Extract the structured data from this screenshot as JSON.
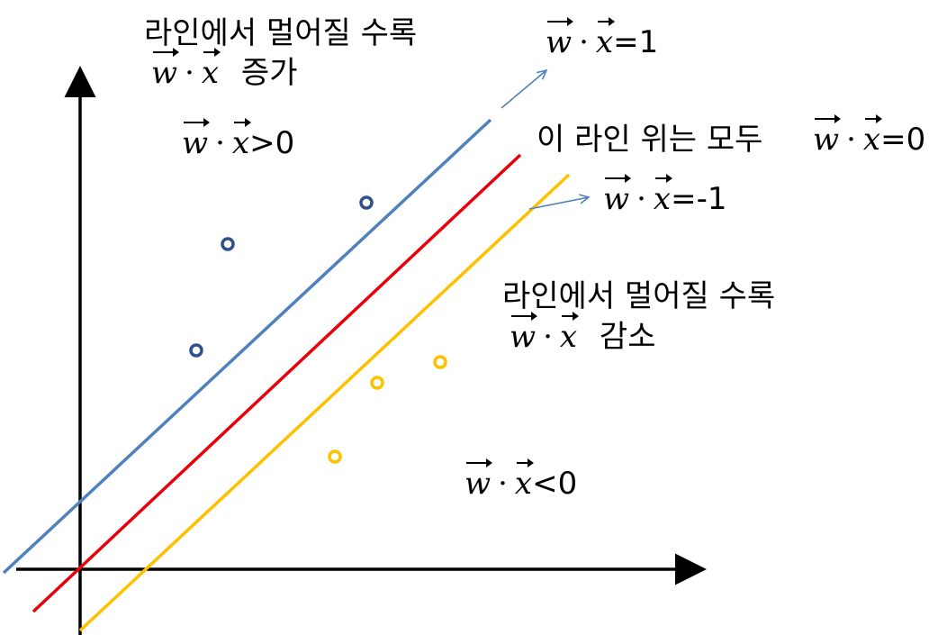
{
  "colors": {
    "axis": "#000000",
    "line_plus": "#4F81BD",
    "line_zero": "#E8000B",
    "line_minus": "#FFC000",
    "point_positive": "#2F4F8F",
    "point_negative": "#FFC000",
    "callout_arrow": "#4F81BD"
  },
  "vector_dot": {
    "w": "w",
    "x": "x",
    "dot": "·"
  },
  "labels": {
    "increase_caption": "라인에서 멀어질 수록",
    "increase_word": "증가",
    "positive_rel": ">0",
    "plus_one_rel": "=1",
    "zero_line_caption": "이 라인 위는 모두",
    "zero_rel": "=0",
    "minus_one_rel": "=-1",
    "decrease_caption": "라인에서 멀어질 수록",
    "decrease_word": "감소",
    "negative_rel": "<0"
  }
}
